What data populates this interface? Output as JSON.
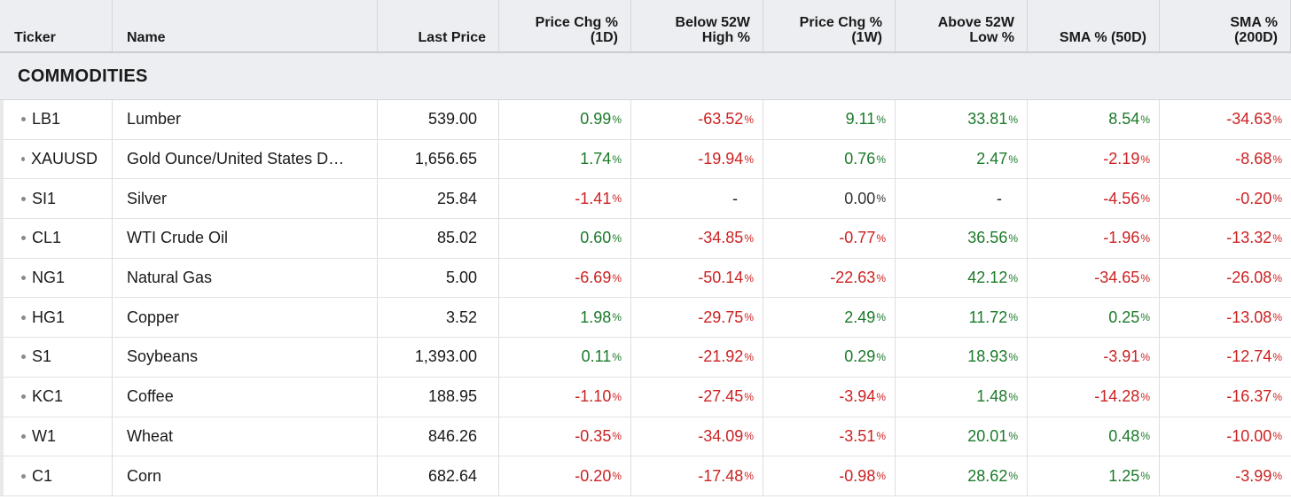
{
  "colors": {
    "positive": "#1b7a2a",
    "negative": "#cc2222",
    "neutral": "#333333",
    "header_bg": "#eceef1"
  },
  "columns": [
    {
      "label": "Ticker",
      "align": "left"
    },
    {
      "label": "Name",
      "align": "left"
    },
    {
      "label": "Last Price",
      "align": "right"
    },
    {
      "label": "Price Chg %\n(1D)",
      "align": "right"
    },
    {
      "label": "Below 52W\nHigh %",
      "align": "right"
    },
    {
      "label": "Price Chg %\n(1W)",
      "align": "right"
    },
    {
      "label": "Above 52W\nLow %",
      "align": "right"
    },
    {
      "label": "SMA % (50D)",
      "align": "right"
    },
    {
      "label": "SMA %\n(200D)",
      "align": "right"
    }
  ],
  "section": {
    "title": "COMMODITIES"
  },
  "rows": [
    {
      "ticker": "LB1",
      "name": "Lumber",
      "price": "539.00",
      "values": [
        [
          "0.99",
          "pos"
        ],
        [
          "-63.52",
          "neg"
        ],
        [
          "9.11",
          "pos"
        ],
        [
          "33.81",
          "pos"
        ],
        [
          "8.54",
          "pos"
        ],
        [
          "-34.63",
          "neg"
        ]
      ]
    },
    {
      "ticker": "XAUUSD",
      "name": "Gold Ounce/United States D…",
      "price": "1,656.65",
      "values": [
        [
          "1.74",
          "pos"
        ],
        [
          "-19.94",
          "neg"
        ],
        [
          "0.76",
          "pos"
        ],
        [
          "2.47",
          "pos"
        ],
        [
          "-2.19",
          "neg"
        ],
        [
          "-8.68",
          "neg"
        ]
      ]
    },
    {
      "ticker": "SI1",
      "name": "Silver",
      "price": "25.84",
      "values": [
        [
          "-1.41",
          "neg"
        ],
        [
          "-",
          "dash"
        ],
        [
          "0.00",
          "neu"
        ],
        [
          "-",
          "dash"
        ],
        [
          "-4.56",
          "neg"
        ],
        [
          "-0.20",
          "neg"
        ]
      ]
    },
    {
      "ticker": "CL1",
      "name": "WTI Crude Oil",
      "price": "85.02",
      "values": [
        [
          "0.60",
          "pos"
        ],
        [
          "-34.85",
          "neg"
        ],
        [
          "-0.77",
          "neg"
        ],
        [
          "36.56",
          "pos"
        ],
        [
          "-1.96",
          "neg"
        ],
        [
          "-13.32",
          "neg"
        ]
      ]
    },
    {
      "ticker": "NG1",
      "name": "Natural Gas",
      "price": "5.00",
      "values": [
        [
          "-6.69",
          "neg"
        ],
        [
          "-50.14",
          "neg"
        ],
        [
          "-22.63",
          "neg"
        ],
        [
          "42.12",
          "pos"
        ],
        [
          "-34.65",
          "neg"
        ],
        [
          "-26.08",
          "neg"
        ]
      ]
    },
    {
      "ticker": "HG1",
      "name": "Copper",
      "price": "3.52",
      "values": [
        [
          "1.98",
          "pos"
        ],
        [
          "-29.75",
          "neg"
        ],
        [
          "2.49",
          "pos"
        ],
        [
          "11.72",
          "pos"
        ],
        [
          "0.25",
          "pos"
        ],
        [
          "-13.08",
          "neg"
        ]
      ]
    },
    {
      "ticker": "S1",
      "name": "Soybeans",
      "price": "1,393.00",
      "values": [
        [
          "0.11",
          "pos"
        ],
        [
          "-21.92",
          "neg"
        ],
        [
          "0.29",
          "pos"
        ],
        [
          "18.93",
          "pos"
        ],
        [
          "-3.91",
          "neg"
        ],
        [
          "-12.74",
          "neg"
        ]
      ]
    },
    {
      "ticker": "KC1",
      "name": "Coffee",
      "price": "188.95",
      "values": [
        [
          "-1.10",
          "neg"
        ],
        [
          "-27.45",
          "neg"
        ],
        [
          "-3.94",
          "neg"
        ],
        [
          "1.48",
          "pos"
        ],
        [
          "-14.28",
          "neg"
        ],
        [
          "-16.37",
          "neg"
        ]
      ]
    },
    {
      "ticker": "W1",
      "name": "Wheat",
      "price": "846.26",
      "values": [
        [
          "-0.35",
          "neg"
        ],
        [
          "-34.09",
          "neg"
        ],
        [
          "-3.51",
          "neg"
        ],
        [
          "20.01",
          "pos"
        ],
        [
          "0.48",
          "pos"
        ],
        [
          "-10.00",
          "neg"
        ]
      ]
    },
    {
      "ticker": "C1",
      "name": "Corn",
      "price": "682.64",
      "values": [
        [
          "-0.20",
          "neg"
        ],
        [
          "-17.48",
          "neg"
        ],
        [
          "-0.98",
          "neg"
        ],
        [
          "28.62",
          "pos"
        ],
        [
          "1.25",
          "pos"
        ],
        [
          "-3.99",
          "neg"
        ]
      ]
    }
  ],
  "pct_symbol": "%"
}
